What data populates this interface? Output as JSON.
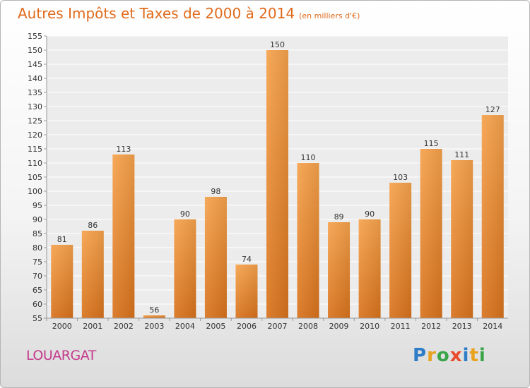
{
  "chart_data": {
    "type": "bar",
    "title": "Autres Impôts et Taxes de 2000 à 2014",
    "unit_label": "(en milliers d'€)",
    "categories": [
      "2000",
      "2001",
      "2002",
      "2003",
      "2004",
      "2005",
      "2006",
      "2007",
      "2008",
      "2009",
      "2010",
      "2011",
      "2012",
      "2013",
      "2014"
    ],
    "values": [
      81,
      86,
      113,
      56,
      90,
      98,
      74,
      150,
      110,
      89,
      90,
      103,
      115,
      111,
      127
    ],
    "ylim": [
      55,
      155
    ],
    "yticks": [
      55,
      60,
      65,
      70,
      75,
      80,
      85,
      90,
      95,
      100,
      105,
      110,
      115,
      120,
      125,
      130,
      135,
      140,
      145,
      150,
      155
    ],
    "grid": true,
    "bar_color": "#f0913a",
    "xlabel": "",
    "ylabel": ""
  },
  "footer": {
    "town": "LOUARGAT",
    "logo_letters": [
      {
        "ch": "P",
        "color": "#2e7dc6"
      },
      {
        "ch": "r",
        "color": "#e8a21e"
      },
      {
        "ch": "o",
        "color": "#3aa548"
      },
      {
        "ch": "x",
        "color": "#e84a2a"
      },
      {
        "ch": "i",
        "color": "#2e7dc6"
      },
      {
        "ch": "t",
        "color": "#e8a21e"
      },
      {
        "ch": "i",
        "color": "#3aa548"
      }
    ]
  }
}
